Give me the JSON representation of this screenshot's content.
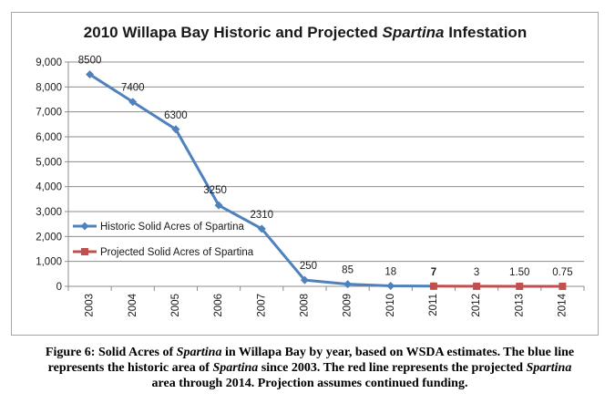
{
  "chart_data": {
    "type": "line",
    "title": {
      "before": "2010 Willapa Bay Historic and Projected ",
      "italic": "Spartina",
      "after": " Infestation"
    },
    "categories": [
      "2003",
      "2004",
      "2005",
      "2006",
      "2007",
      "2008",
      "2009",
      "2010",
      "2011",
      "2012",
      "2013",
      "2014"
    ],
    "ylim": [
      0,
      9000
    ],
    "yticks": [
      0,
      1000,
      2000,
      3000,
      4000,
      5000,
      6000,
      7000,
      8000,
      9000
    ],
    "ytick_labels": [
      "0",
      "1,000",
      "2,000",
      "3,000",
      "4,000",
      "5,000",
      "6,000",
      "7,000",
      "8,000",
      "9,000"
    ],
    "grid": true,
    "legend_position": "center-left",
    "series": [
      {
        "name": "Historic Solid Acres of Spartina",
        "color": "#4f81bd",
        "marker": "diamond",
        "x": [
          "2003",
          "2004",
          "2005",
          "2006",
          "2007",
          "2008",
          "2009",
          "2010",
          "2011"
        ],
        "values": [
          8500,
          7400,
          6300,
          3250,
          2310,
          250,
          85,
          18,
          7
        ],
        "labels": [
          "8500",
          "7400",
          "6300",
          "3250",
          "2310",
          "250",
          "85",
          "18",
          "7"
        ]
      },
      {
        "name": "Projected Solid Acres of Spartina",
        "color": "#c0504d",
        "marker": "square",
        "x": [
          "2011",
          "2012",
          "2013",
          "2014"
        ],
        "values": [
          7,
          3,
          1.5,
          0.75
        ],
        "labels": [
          "",
          "3",
          "1.50",
          "0.75"
        ]
      }
    ]
  },
  "caption": {
    "parts": [
      {
        "text": "Figure 6:  Solid Acres of ",
        "italic": false
      },
      {
        "text": "Spartina",
        "italic": true
      },
      {
        "text": " in Willapa Bay by year, based on WSDA estimates. The blue line represents the historic area of ",
        "italic": false
      },
      {
        "text": "Spartina",
        "italic": true
      },
      {
        "text": " since 2003.  The red line represents the projected ",
        "italic": false
      },
      {
        "text": "Spartina",
        "italic": true
      },
      {
        "text": " area through 2014.  Projection assumes continued funding.",
        "italic": false
      }
    ]
  }
}
